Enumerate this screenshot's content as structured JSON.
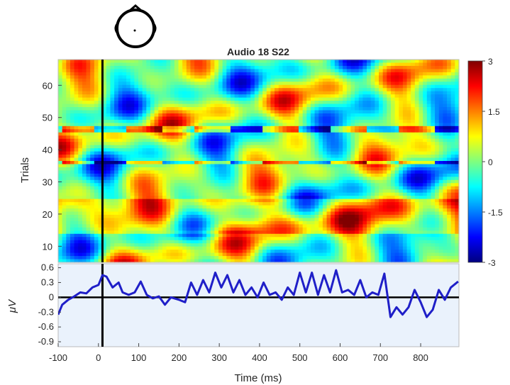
{
  "chart_data": [
    {
      "type": "heatmap",
      "title": "Audio 18 S22",
      "ylabel": "Trials",
      "xlim": [
        -100,
        895
      ],
      "ylim": [
        5,
        68
      ],
      "yticks": [
        10,
        20,
        30,
        40,
        50,
        60
      ],
      "colormap": "jet",
      "clim": [
        -3,
        3
      ],
      "colorbar_ticks": [
        "3",
        "1.5",
        "0",
        "-1.5",
        "-3"
      ],
      "colorbar_tick_values": [
        3,
        1.5,
        0,
        -1.5,
        -3
      ],
      "stimulus_onset_ms": 10,
      "grid": false
    },
    {
      "type": "line",
      "xlabel": "Time (ms)",
      "ylabel": "μV",
      "xlim": [
        -100,
        895
      ],
      "ylim": [
        -1.0,
        0.68
      ],
      "xticks": [
        -100,
        0,
        100,
        200,
        300,
        400,
        500,
        600,
        700,
        800
      ],
      "yticks": [
        "0.6",
        "0.3",
        "0",
        "-0.3",
        "-0.6",
        "-0.9"
      ],
      "ytick_values": [
        0.6,
        0.3,
        0,
        -0.3,
        -0.6,
        -0.9
      ],
      "zero_line": true,
      "grid": false,
      "series": [
        {
          "color": "#1f1fc8",
          "x": [
            -100,
            -90,
            -75,
            -60,
            -45,
            -30,
            -15,
            0,
            10,
            20,
            35,
            50,
            60,
            75,
            90,
            105,
            120,
            135,
            150,
            165,
            180,
            200,
            215,
            230,
            245,
            260,
            275,
            290,
            305,
            320,
            335,
            350,
            365,
            380,
            395,
            410,
            425,
            440,
            455,
            470,
            485,
            500,
            515,
            530,
            545,
            560,
            575,
            590,
            605,
            620,
            635,
            650,
            665,
            680,
            695,
            710,
            725,
            740,
            755,
            770,
            785,
            800,
            815,
            830,
            845,
            860,
            875,
            893
          ],
          "y": [
            -0.35,
            -0.15,
            -0.05,
            0.02,
            0.1,
            0.08,
            0.2,
            0.25,
            0.45,
            0.42,
            0.2,
            0.3,
            0.1,
            0.05,
            0.1,
            0.32,
            0.05,
            -0.02,
            0.02,
            -0.15,
            0.0,
            -0.05,
            -0.1,
            0.3,
            0.05,
            0.35,
            0.1,
            0.5,
            0.2,
            0.45,
            0.1,
            0.35,
            0.05,
            0.2,
            0.0,
            0.3,
            0.05,
            0.1,
            -0.05,
            0.2,
            0.05,
            0.5,
            0.1,
            0.5,
            0.05,
            0.45,
            0.1,
            0.55,
            0.1,
            0.15,
            0.05,
            0.35,
            0.0,
            0.1,
            0.05,
            0.48,
            -0.4,
            -0.2,
            -0.35,
            -0.2,
            0.15,
            -0.1,
            -0.4,
            -0.25,
            0.15,
            -0.05,
            0.2,
            0.32
          ]
        }
      ]
    }
  ]
}
